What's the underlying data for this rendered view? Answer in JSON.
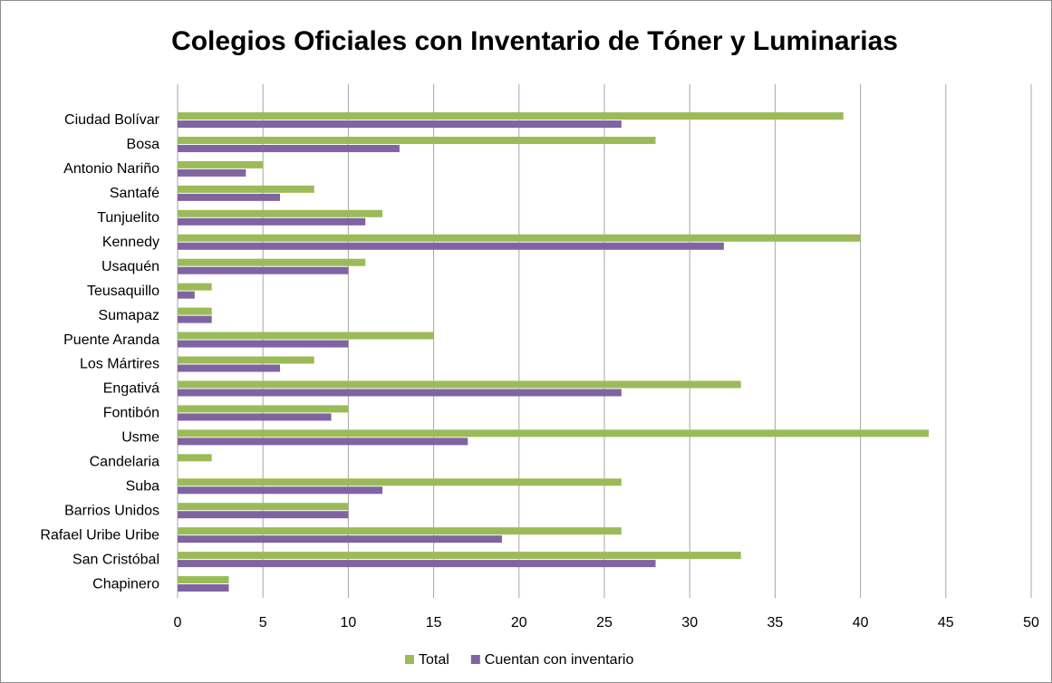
{
  "chart_data": {
    "type": "bar",
    "orientation": "horizontal",
    "title": "Colegios Oficiales con Inventario de Tóner y Luminarias",
    "categories": [
      "Ciudad Bolívar",
      "Bosa",
      "Antonio Nariño",
      "Santafé",
      "Tunjuelito",
      "Kennedy",
      "Usaquén",
      "Teusaquillo",
      "Sumapaz",
      "Puente Aranda",
      "Los Mártires",
      "Engativá",
      "Fontibón",
      "Usme",
      "Candelaria",
      "Suba",
      "Barrios Unidos",
      "Rafael Uribe Uribe",
      "San Cristóbal",
      "Chapinero"
    ],
    "series": [
      {
        "name": "Total",
        "color": "#9bbb59",
        "values": [
          39,
          28,
          5,
          8,
          12,
          40,
          11,
          2,
          2,
          15,
          8,
          33,
          10,
          44,
          2,
          26,
          10,
          26,
          33,
          3
        ]
      },
      {
        "name": "Cuentan con inventario",
        "color": "#8064a2",
        "values": [
          26,
          13,
          4,
          6,
          11,
          32,
          10,
          1,
          2,
          10,
          6,
          26,
          9,
          17,
          0,
          12,
          10,
          19,
          28,
          3
        ]
      }
    ],
    "xlim": [
      0,
      50
    ],
    "xticks": [
      0,
      5,
      10,
      15,
      20,
      25,
      30,
      35,
      40,
      45,
      50
    ],
    "grid": true,
    "legend": "bottom"
  }
}
